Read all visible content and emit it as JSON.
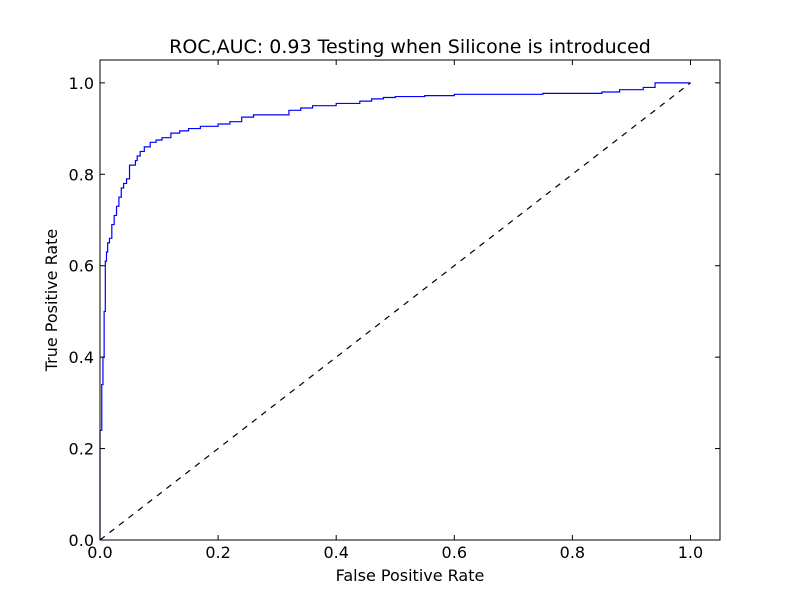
{
  "chart_data": {
    "type": "line",
    "title": "ROC,AUC: 0.93 Testing when Silicone is introduced",
    "xlabel": "False Positive Rate",
    "ylabel": "True Positive Rate",
    "xlim": [
      0.0,
      1.05
    ],
    "ylim": [
      0.0,
      1.05
    ],
    "xticks": [
      0.0,
      0.2,
      0.4,
      0.6,
      0.8,
      1.0
    ],
    "yticks": [
      0.0,
      0.2,
      0.4,
      0.6,
      0.8,
      1.0
    ],
    "xtick_labels": [
      "0.0",
      "0.2",
      "0.4",
      "0.6",
      "0.8",
      "1.0"
    ],
    "ytick_labels": [
      "0.0",
      "0.2",
      "0.4",
      "0.6",
      "0.8",
      "1.0"
    ],
    "grid": false,
    "series": [
      {
        "name": "roc-curve",
        "color": "#0000ff",
        "style": "solid",
        "step": true,
        "x": [
          0.0,
          0.0,
          0.003,
          0.003,
          0.005,
          0.005,
          0.007,
          0.007,
          0.009,
          0.009,
          0.011,
          0.011,
          0.013,
          0.013,
          0.016,
          0.016,
          0.02,
          0.02,
          0.024,
          0.024,
          0.028,
          0.028,
          0.032,
          0.032,
          0.036,
          0.036,
          0.04,
          0.04,
          0.045,
          0.045,
          0.05,
          0.05,
          0.06,
          0.06,
          0.063,
          0.063,
          0.068,
          0.068,
          0.075,
          0.075,
          0.085,
          0.085,
          0.095,
          0.095,
          0.105,
          0.105,
          0.12,
          0.12,
          0.135,
          0.135,
          0.15,
          0.15,
          0.17,
          0.17,
          0.2,
          0.2,
          0.22,
          0.22,
          0.24,
          0.24,
          0.26,
          0.26,
          0.32,
          0.32,
          0.34,
          0.34,
          0.36,
          0.36,
          0.4,
          0.4,
          0.44,
          0.44,
          0.46,
          0.46,
          0.48,
          0.48,
          0.5,
          0.5,
          0.55,
          0.55,
          0.6,
          0.6,
          0.75,
          0.75,
          0.85,
          0.85,
          0.88,
          0.88,
          0.92,
          0.92,
          0.94,
          0.94,
          0.98,
          1.0
        ],
        "y": [
          0.0,
          0.24,
          0.24,
          0.34,
          0.34,
          0.4,
          0.4,
          0.5,
          0.5,
          0.61,
          0.61,
          0.63,
          0.63,
          0.65,
          0.65,
          0.66,
          0.66,
          0.69,
          0.69,
          0.71,
          0.71,
          0.73,
          0.73,
          0.75,
          0.75,
          0.77,
          0.77,
          0.78,
          0.78,
          0.79,
          0.79,
          0.82,
          0.82,
          0.83,
          0.83,
          0.84,
          0.84,
          0.85,
          0.85,
          0.86,
          0.86,
          0.87,
          0.87,
          0.875,
          0.875,
          0.88,
          0.88,
          0.89,
          0.89,
          0.895,
          0.895,
          0.9,
          0.9,
          0.905,
          0.905,
          0.91,
          0.91,
          0.915,
          0.915,
          0.925,
          0.925,
          0.93,
          0.93,
          0.94,
          0.94,
          0.945,
          0.945,
          0.95,
          0.95,
          0.955,
          0.955,
          0.96,
          0.96,
          0.965,
          0.965,
          0.968,
          0.968,
          0.97,
          0.97,
          0.972,
          0.972,
          0.975,
          0.975,
          0.977,
          0.977,
          0.98,
          0.98,
          0.985,
          0.985,
          0.99,
          0.99,
          1.0,
          1.0,
          1.0
        ]
      },
      {
        "name": "chance-line",
        "color": "#000000",
        "style": "dashed",
        "x": [
          0.0,
          1.0
        ],
        "y": [
          0.0,
          1.0
        ]
      }
    ]
  }
}
